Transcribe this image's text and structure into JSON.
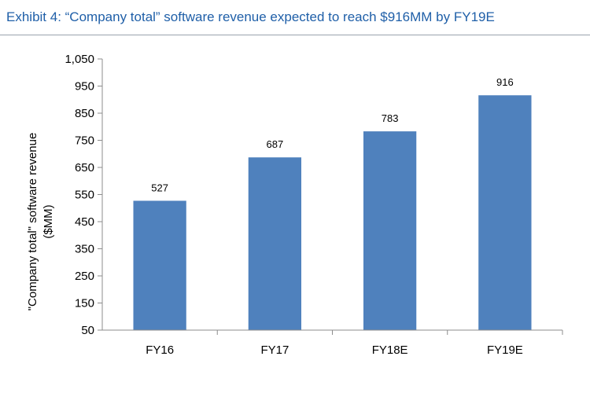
{
  "header": {
    "title": "Exhibit 4: “Company total” software revenue expected to reach $916MM by FY19E"
  },
  "colors": {
    "title": "#1f5fa8",
    "bar": "#4f81bd",
    "axis": "#8c8c8c"
  },
  "chart_data": {
    "type": "bar",
    "title": "",
    "xlabel": "",
    "ylabel_lines": [
      "\"Company total\" software revenue",
      "($MM)"
    ],
    "categories": [
      "FY16",
      "FY17",
      "FY18E",
      "FY19E"
    ],
    "values": [
      527,
      687,
      783,
      916
    ],
    "data_labels": [
      "527",
      "687",
      "783",
      "916"
    ],
    "ylim": [
      50,
      1050
    ],
    "yticks": [
      50,
      150,
      250,
      350,
      450,
      550,
      650,
      750,
      850,
      950,
      1050
    ],
    "ytick_labels": [
      "50",
      "150",
      "250",
      "350",
      "450",
      "550",
      "650",
      "750",
      "850",
      "950",
      "1,050"
    ],
    "grid": false,
    "legend": "none"
  }
}
